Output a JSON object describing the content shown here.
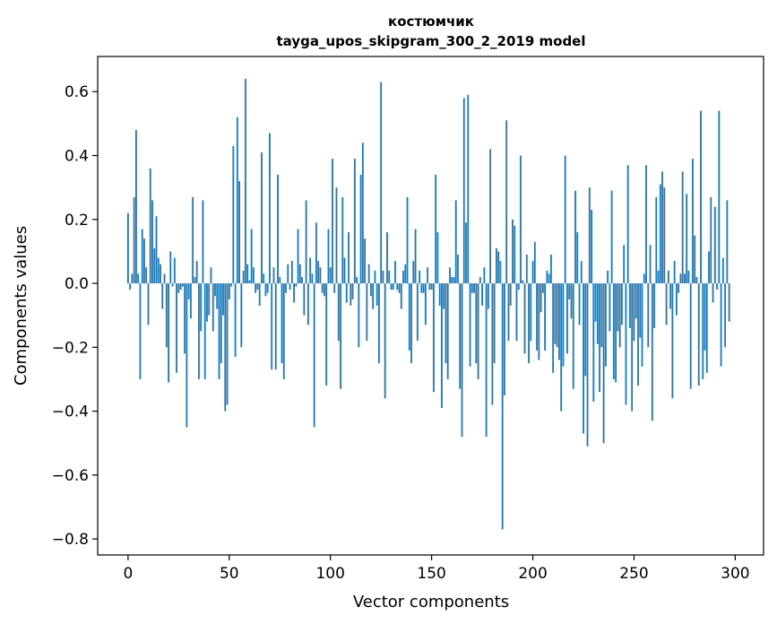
{
  "chart_data": {
    "type": "bar",
    "title": "костюмчик",
    "subtitle": "tayga_upos_skipgram_300_2_2019 model",
    "xlabel": "Vector components",
    "ylabel": "Components values",
    "xlim": [
      -15,
      314
    ],
    "ylim": [
      -0.85,
      0.71
    ],
    "xticks": [
      0,
      50,
      100,
      150,
      200,
      250,
      300
    ],
    "xtick_labels": [
      "0",
      "50",
      "100",
      "150",
      "200",
      "250",
      "300"
    ],
    "yticks": [
      -0.8,
      -0.6,
      -0.4,
      -0.2,
      0.0,
      0.2,
      0.4,
      0.6
    ],
    "ytick_labels": [
      "−0.8",
      "−0.6",
      "−0.4",
      "−0.2",
      "0.0",
      "0.2",
      "0.4",
      "0.6"
    ],
    "bar_color": "#1f77b4",
    "grid": false,
    "legend": "none",
    "x_start": 0,
    "values": [
      0.22,
      -0.02,
      0.03,
      0.27,
      0.48,
      0.03,
      -0.3,
      0.17,
      0.14,
      0.05,
      -0.13,
      0.36,
      0.26,
      0.11,
      0.21,
      0.08,
      0.06,
      -0.08,
      0.03,
      -0.2,
      -0.31,
      0.1,
      -0.01,
      0.08,
      -0.28,
      -0.03,
      -0.02,
      -0.01,
      -0.22,
      -0.45,
      -0.05,
      -0.11,
      0.27,
      0.02,
      0.07,
      -0.3,
      -0.15,
      0.26,
      -0.3,
      -0.12,
      -0.1,
      0.05,
      -0.15,
      -0.04,
      -0.08,
      -0.3,
      -0.25,
      -0.1,
      -0.4,
      -0.38,
      -0.05,
      -0.01,
      0.43,
      -0.23,
      0.52,
      0.32,
      -0.2,
      0.04,
      0.64,
      0.06,
      0.01,
      0.17,
      0.05,
      -0.03,
      -0.02,
      -0.07,
      0.41,
      0.03,
      -0.04,
      -0.03,
      0.47,
      -0.27,
      0.05,
      -0.27,
      0.34,
      0.02,
      -0.25,
      -0.3,
      -0.03,
      0.06,
      -0.02,
      0.07,
      -0.06,
      -0.01,
      0.17,
      0.06,
      0.02,
      -0.1,
      0.26,
      -0.13,
      0.08,
      0.03,
      -0.45,
      0.19,
      0.07,
      0.05,
      -0.03,
      -0.04,
      -0.32,
      0.17,
      0.05,
      0.39,
      -0.03,
      0.3,
      -0.18,
      -0.33,
      0.27,
      0.08,
      -0.06,
      0.16,
      -0.07,
      -0.05,
      0.39,
      0.02,
      -0.2,
      0.34,
      0.44,
      0.14,
      -0.18,
      0.06,
      -0.04,
      -0.08,
      0.04,
      -0.07,
      -0.25,
      0.63,
      0.04,
      -0.36,
      0.16,
      0.04,
      -0.02,
      -0.02,
      0.07,
      -0.02,
      -0.03,
      -0.08,
      0.04,
      0.06,
      0.27,
      -0.21,
      -0.25,
      0.07,
      0.17,
      -0.18,
      0.04,
      -0.03,
      -0.03,
      -0.13,
      0.05,
      -0.02,
      -0.02,
      -0.34,
      0.34,
      0.16,
      -0.07,
      -0.39,
      -0.08,
      -0.25,
      -0.3,
      0.05,
      0.02,
      0.02,
      0.26,
      0.09,
      -0.33,
      -0.48,
      0.58,
      0.19,
      0.59,
      -0.26,
      -0.03,
      -0.03,
      -0.25,
      -0.3,
      0.02,
      -0.07,
      0.05,
      -0.48,
      -0.08,
      0.42,
      -0.38,
      -0.25,
      0.11,
      0.1,
      0.07,
      -0.77,
      -0.35,
      0.51,
      -0.18,
      -0.07,
      0.2,
      0.18,
      -0.18,
      -0.02,
      0.4,
      0.01,
      -0.22,
      0.09,
      -0.25,
      -0.18,
      0.07,
      0.13,
      -0.21,
      -0.24,
      -0.09,
      -0.03,
      -0.21,
      0.04,
      0.03,
      0.09,
      -0.28,
      -0.19,
      -0.2,
      -0.24,
      -0.4,
      -0.26,
      0.4,
      -0.22,
      -0.05,
      -0.11,
      -0.33,
      0.29,
      0.16,
      -0.13,
      0.07,
      -0.47,
      -0.29,
      -0.51,
      0.3,
      0.23,
      -0.37,
      -0.12,
      -0.19,
      -0.34,
      -0.2,
      -0.5,
      -0.26,
      0.04,
      -0.15,
      0.29,
      -0.3,
      -0.31,
      -0.15,
      -0.2,
      -0.13,
      0.12,
      -0.38,
      0.37,
      -0.14,
      -0.4,
      -0.18,
      -0.11,
      -0.32,
      -0.17,
      -0.26,
      0.03,
      0.37,
      -0.2,
      0.12,
      -0.43,
      -0.14,
      0.27,
      0.04,
      0.31,
      0.35,
      0.3,
      -0.13,
      0.04,
      -0.08,
      -0.36,
      0.07,
      -0.1,
      -0.03,
      0.03,
      0.35,
      0.03,
      0.28,
      0.04,
      -0.33,
      0.39,
      0.15,
      0.02,
      -0.32,
      0.54,
      -0.3,
      -0.21,
      -0.28,
      0.1,
      0.27,
      -0.06,
      0.24,
      -0.02,
      0.54,
      -0.26,
      0.08,
      -0.2,
      0.26,
      -0.12
    ]
  }
}
